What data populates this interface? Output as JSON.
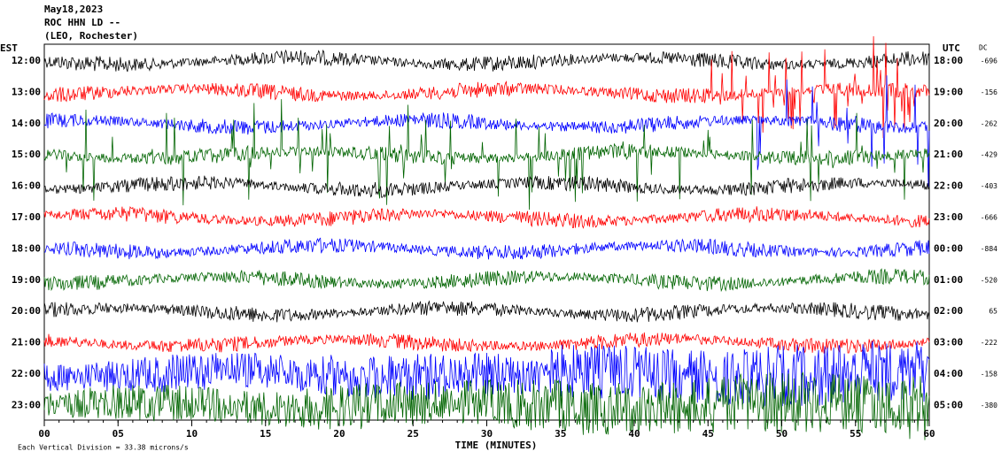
{
  "chart_data": {
    "type": "helicorder",
    "title_lines": [
      "May18,2023",
      "ROC HHN LD --",
      "(LEO, Rochester)"
    ],
    "left_axis_label": "EST",
    "right_axis_label": "UTC",
    "dc_label": "DC",
    "rows": [
      {
        "est": "12:00",
        "utc": "18:00",
        "dc": -696
      },
      {
        "est": "13:00",
        "utc": "19:00",
        "dc": -156
      },
      {
        "est": "14:00",
        "utc": "20:00",
        "dc": -262
      },
      {
        "est": "15:00",
        "utc": "21:00",
        "dc": -429
      },
      {
        "est": "16:00",
        "utc": "22:00",
        "dc": -403
      },
      {
        "est": "17:00",
        "utc": "23:00",
        "dc": -666
      },
      {
        "est": "18:00",
        "utc": "00:00",
        "dc": -884
      },
      {
        "est": "19:00",
        "utc": "01:00",
        "dc": -520
      },
      {
        "est": "20:00",
        "utc": "02:00",
        "dc": 65
      },
      {
        "est": "21:00",
        "utc": "03:00",
        "dc": -222
      },
      {
        "est": "22:00",
        "utc": "04:00",
        "dc": -158
      },
      {
        "est": "23:00",
        "utc": "05:00",
        "dc": -380
      }
    ],
    "trace_colors": [
      "#000000",
      "#ff0000",
      "#0000ff",
      "#006400"
    ],
    "x_label": "TIME (MINUTES)",
    "xlim": [
      0,
      60
    ],
    "xticks": [
      {
        "value": 0,
        "label": "00"
      },
      {
        "value": 5,
        "label": "05"
      },
      10,
      15,
      20,
      25,
      30,
      35,
      40,
      45,
      50,
      55,
      60
    ],
    "footer": "Each Vertical Division = 33.38 microns/s"
  }
}
